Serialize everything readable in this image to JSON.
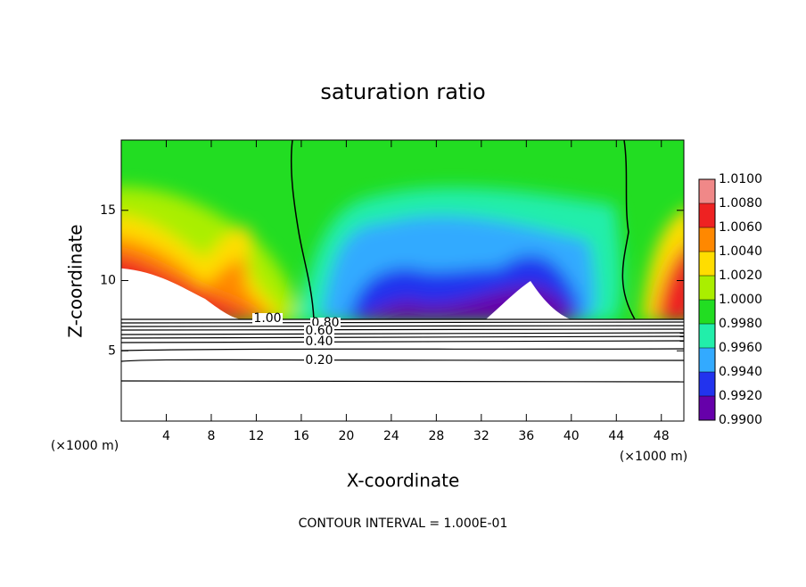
{
  "chart_data": {
    "type": "contour",
    "title": "saturation ratio",
    "xlabel": "X-coordinate",
    "ylabel": "Z-coordinate",
    "x_unit_left": "(×1000 m)",
    "x_unit_right": "(×1000 m)",
    "footer": "CONTOUR INTERVAL = 1.000E-01",
    "xlim": [
      0,
      50
    ],
    "ylim": [
      0,
      20
    ],
    "xticks": [
      4,
      8,
      12,
      16,
      20,
      24,
      28,
      32,
      36,
      40,
      44,
      48
    ],
    "yticks": [
      5,
      10,
      15
    ],
    "colorbar": {
      "levels": [
        {
          "value": 1.01,
          "label": "1.0100"
        },
        {
          "value": 1.008,
          "label": "1.0080"
        },
        {
          "value": 1.006,
          "label": "1.0060"
        },
        {
          "value": 1.004,
          "label": "1.0040"
        },
        {
          "value": 1.002,
          "label": "1.0020"
        },
        {
          "value": 1.0,
          "label": "1.0000"
        },
        {
          "value": 0.998,
          "label": "0.9980"
        },
        {
          "value": 0.996,
          "label": "0.9960"
        },
        {
          "value": 0.994,
          "label": "0.9940"
        },
        {
          "value": 0.992,
          "label": "0.9920"
        },
        {
          "value": 0.99,
          "label": "0.9900"
        }
      ],
      "colors": [
        "#f08888",
        "#ee2222",
        "#ff8800",
        "#ffdd00",
        "#aaee00",
        "#22dd22",
        "#22eeaa",
        "#33aaff",
        "#2233ee",
        "#6600aa"
      ]
    },
    "contours": [
      {
        "value": 1.0,
        "label": "1.00"
      },
      {
        "value": 0.8,
        "label": "0.80"
      },
      {
        "value": 0.6,
        "label": "0.60"
      },
      {
        "value": 0.4,
        "label": "0.40"
      },
      {
        "value": 0.2,
        "label": "0.20"
      }
    ]
  }
}
